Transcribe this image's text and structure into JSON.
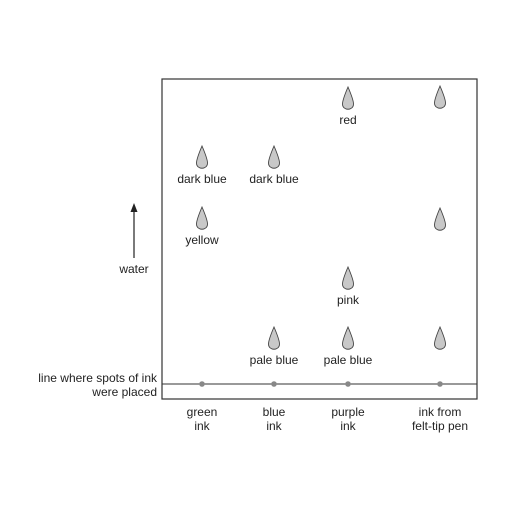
{
  "side_labels": {
    "water": "water",
    "baseline_line1": "line where spots of ink",
    "baseline_line2": "were placed"
  },
  "columns": [
    {
      "id": "green",
      "label_lines": [
        "green",
        "ink"
      ],
      "spots": [
        {
          "label": "dark blue"
        },
        {
          "label": "yellow"
        }
      ]
    },
    {
      "id": "blue",
      "label_lines": [
        "blue",
        "ink"
      ],
      "spots": [
        {
          "label": "dark blue"
        },
        {
          "label": "pale blue"
        }
      ]
    },
    {
      "id": "purple",
      "label_lines": [
        "purple",
        "ink"
      ],
      "spots": [
        {
          "label": "red"
        },
        {
          "label": "pink"
        },
        {
          "label": "pale blue"
        }
      ]
    },
    {
      "id": "felt-tip",
      "label_lines": [
        "ink from",
        "felt-tip pen"
      ],
      "spots": [
        {
          "label": ""
        },
        {
          "label": ""
        },
        {
          "label": ""
        }
      ]
    }
  ]
}
